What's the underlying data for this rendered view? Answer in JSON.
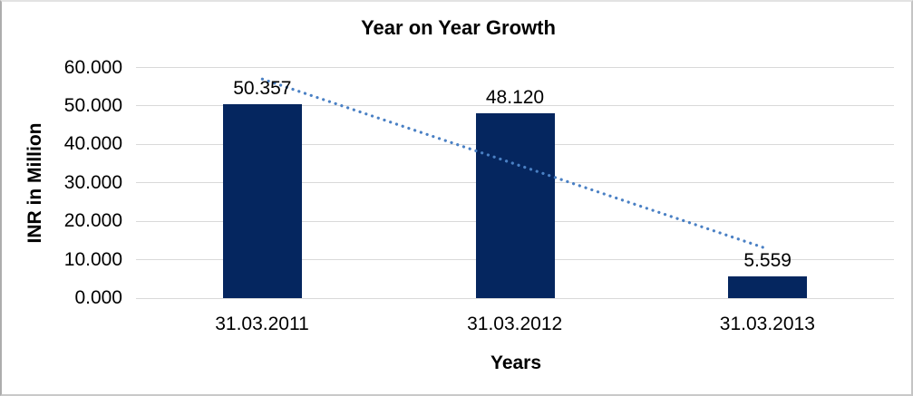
{
  "chart_data": {
    "type": "bar",
    "title": "Year on Year Growth",
    "xlabel": "Years",
    "ylabel": "INR in Million",
    "categories": [
      "31.03.2011",
      "31.03.2012",
      "31.03.2013"
    ],
    "values": [
      50.357,
      48.12,
      5.559
    ],
    "data_labels": [
      "50.357",
      "48.120",
      "5.559"
    ],
    "ylim": [
      0,
      60
    ],
    "yticks": [
      0,
      10,
      20,
      30,
      40,
      50,
      60
    ],
    "ytick_labels": [
      "0.000",
      "10.000",
      "20.000",
      "30.000",
      "40.000",
      "50.000",
      "60.000"
    ],
    "grid": true,
    "legend": "none",
    "bar_color": "#05265f",
    "gridline_color": "#d9d9d9",
    "text_color": "#000000",
    "trendline": {
      "type": "linear",
      "style": "dotted",
      "color": "#4a80c4",
      "start_value": 57.0,
      "end_value": 12.8
    }
  }
}
